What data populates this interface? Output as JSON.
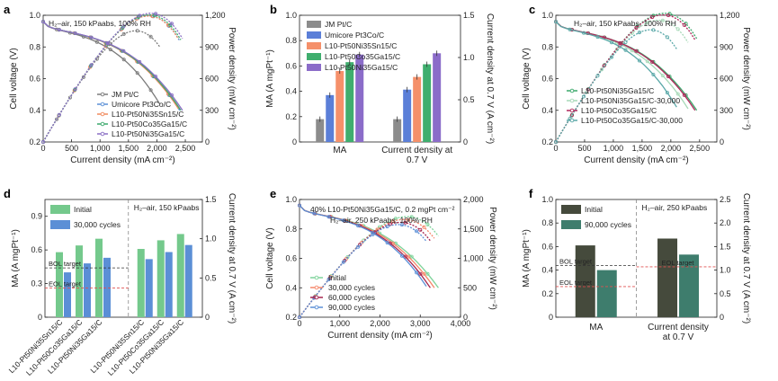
{
  "figure": {
    "panels": [
      "a",
      "b",
      "c",
      "d",
      "e",
      "f"
    ]
  },
  "chart_data": [
    {
      "id": "a",
      "type": "line",
      "annotation": "H₂–air, 150 kPaabs, 100% RH",
      "xlabel": "Current density (mA cm⁻²)",
      "ylabel": "Cell voltage (V)",
      "y2label": "Power density (mW cm⁻²)",
      "xlim": [
        0,
        2800
      ],
      "ylim": [
        0.2,
        1.0
      ],
      "y2lim": [
        0,
        1200
      ],
      "xticks": [
        "0",
        "500",
        "1,000",
        "1,500",
        "2,000",
        "2,500"
      ],
      "yticks": [
        "0.2",
        "0.4",
        "0.6",
        "0.8",
        "1.0"
      ],
      "y2ticks": [
        "0",
        "300",
        "600",
        "900",
        "1,200"
      ],
      "series": [
        {
          "name": "JM Pt/C",
          "color": "#7a7a7a",
          "imax": 2050,
          "v_end": 0.44
        },
        {
          "name": "Umicore Pt3Co/C",
          "color": "#5a8fd6",
          "imax": 2400,
          "v_end": 0.4
        },
        {
          "name": "L10-Pt50Ni35Sn15/C",
          "color": "#f08a5d",
          "imax": 2380,
          "v_end": 0.41
        },
        {
          "name": "L10-Pt50Co35Ga15/C",
          "color": "#3aa86b",
          "imax": 2420,
          "v_end": 0.4
        },
        {
          "name": "L10-Pt50Ni35Ga15/C",
          "color": "#8a6fc4",
          "imax": 2450,
          "v_end": 0.4
        }
      ]
    },
    {
      "id": "b",
      "type": "bar",
      "categories": [
        "MA",
        "Current density at 0.7 V"
      ],
      "category_lines": [
        [
          "MA"
        ],
        [
          "Current density at",
          "0.7 V"
        ]
      ],
      "ylabel": "MA (A mgPt⁻¹)",
      "y2label": "Current density at 0.7 V (A cm⁻²)",
      "ylim": [
        0,
        1.0
      ],
      "y2lim": [
        0,
        1.5
      ],
      "yticks": [
        "0",
        "0.2",
        "0.4",
        "0.6",
        "0.8",
        "1.0"
      ],
      "y2ticks": [
        "0",
        "0.5",
        "1.0",
        "1.5"
      ],
      "series": [
        {
          "name": "JM Pt/C",
          "color": "#8c8c8c",
          "values": [
            0.18,
            0.27
          ]
        },
        {
          "name": "Umicore Pt3Co/C",
          "color": "#5b7fd8",
          "values": [
            0.37,
            0.62
          ]
        },
        {
          "name": "L10-Pt50Ni35Sn15/C",
          "color": "#f5906a",
          "values": [
            0.56,
            0.77
          ]
        },
        {
          "name": "L10-Pt50Co35Ga15/C",
          "color": "#3fae6e",
          "values": [
            0.63,
            0.92
          ]
        },
        {
          "name": "L10-Pt50Ni35Ga15/C",
          "color": "#8b6cc9",
          "values": [
            0.69,
            1.05
          ]
        }
      ]
    },
    {
      "id": "c",
      "type": "line",
      "annotation": "H₂–air, 150 kPaabs, 100% RH",
      "xlabel": "Current density (mA cm⁻²)",
      "ylabel": "Cell voltage (V)",
      "y2label": "Power density (mW cm⁻²)",
      "xlim": [
        0,
        2800
      ],
      "ylim": [
        0.2,
        1.0
      ],
      "y2lim": [
        0,
        1200
      ],
      "xticks": [
        "0",
        "500",
        "1,000",
        "1,500",
        "2,000",
        "2,500"
      ],
      "yticks": [
        "0.2",
        "0.4",
        "0.6",
        "0.8",
        "1.0"
      ],
      "y2ticks": [
        "0",
        "300",
        "600",
        "900",
        "1,200"
      ],
      "series": [
        {
          "name": "L10-Pt50Ni35Ga15/C",
          "color": "#3aa86b",
          "imax": 2450,
          "v_end": 0.4
        },
        {
          "name": "L10-Pt50Ni35Ga15/C-30,000",
          "color": "#a7d9b8",
          "imax": 2300,
          "v_end": 0.41
        },
        {
          "name": "L10-Pt50Co35Ga15/C",
          "color": "#b0275a",
          "imax": 2420,
          "v_end": 0.4
        },
        {
          "name": "L10-Pt50Co35Ga15/C-30,000",
          "color": "#5aa8a8",
          "imax": 2100,
          "v_end": 0.42
        }
      ]
    },
    {
      "id": "d",
      "type": "bar",
      "annotation": "H₂–air, 150 kPaabs",
      "ylabel": "MA (A mgPt⁻¹)",
      "y2label": "Current density at 0.7 V (A cm⁻²)",
      "ylim": [
        0,
        1.05
      ],
      "y2lim": [
        0,
        1.5
      ],
      "yticks": [
        "0",
        "0.3",
        "0.6",
        "0.9"
      ],
      "y2ticks": [
        "0",
        "0.5",
        "1.0",
        "1.5"
      ],
      "categories": [
        "L10-Pt50Ni35Sn15/C",
        "L10-Pt50Co35Ga15/C",
        "L10-Pt50Ni35Ga15/C",
        "L10-Pt50Ni35Sn15/C",
        "L10-Pt50Co35Ga15/C",
        "L10-Pt50Ni35Ga15/C"
      ],
      "series": [
        {
          "name": "Initial",
          "color": "#74c98c",
          "values": [
            0.58,
            0.64,
            0.7,
            0.87,
            0.98,
            1.06
          ]
        },
        {
          "name": "30,000 cycles",
          "color": "#5b8fd6",
          "values": [
            0.4,
            0.48,
            0.53,
            0.74,
            0.83,
            0.92
          ]
        }
      ],
      "targets": [
        {
          "label": "BOL target",
          "value": 0.44
        },
        {
          "label": "EOL target",
          "value": 0.26
        }
      ]
    },
    {
      "id": "e",
      "type": "line",
      "annotation_1": "40% L10-Pt50Ni35Ga15/C, 0.2 mgPt cm⁻²",
      "annotation_2": "H₂–air, 250 kPaabs, 100% RH",
      "xlabel": "Current density (mA cm⁻²)",
      "ylabel": "Cell voltage (V)",
      "y2label": "Power density (mW cm⁻²)",
      "xlim": [
        0,
        4000
      ],
      "ylim": [
        0.2,
        1.0
      ],
      "y2lim": [
        0,
        2000
      ],
      "xticks": [
        "0",
        "1,000",
        "2,000",
        "3,000",
        "4,000"
      ],
      "yticks": [
        "0.2",
        "0.4",
        "0.6",
        "0.8",
        "1.0"
      ],
      "y2ticks": [
        "0",
        "500",
        "1,000",
        "1,500",
        "2,000"
      ],
      "series": [
        {
          "name": "Initial",
          "color": "#7ed39a",
          "imax": 3450,
          "v_end": 0.4
        },
        {
          "name": "30,000 cycles",
          "color": "#f5876a",
          "imax": 3350,
          "v_end": 0.4
        },
        {
          "name": "60,000 cycles",
          "color": "#a6264f",
          "imax": 3250,
          "v_end": 0.4
        },
        {
          "name": "90,000 cycles",
          "color": "#5b8fd6",
          "imax": 3150,
          "v_end": 0.41
        }
      ]
    },
    {
      "id": "f",
      "type": "bar",
      "annotation": "H₂–air, 250 kPaabs",
      "categories": [
        "MA",
        "Current density at 0.7 V"
      ],
      "category_lines": [
        [
          "MA"
        ],
        [
          "Current density",
          "at 0.7 V"
        ]
      ],
      "ylabel": "MA (A mgPt⁻¹)",
      "y2label": "Current density at 0.7 V (A cm⁻²)",
      "ylim": [
        0,
        1.0
      ],
      "y2lim": [
        0,
        2.5
      ],
      "yticks": [
        "0",
        "0.2",
        "0.4",
        "0.6",
        "0.8",
        "1.0"
      ],
      "y2ticks": [
        "0",
        "0.5",
        "1.0",
        "1.5",
        "2.0",
        "2.5"
      ],
      "series": [
        {
          "name": "Initial",
          "color": "#454a3c",
          "values": [
            0.61,
            1.67
          ]
        },
        {
          "name": "90,000 cycles",
          "color": "#3e7d6d",
          "values": [
            0.4,
            1.33
          ]
        }
      ],
      "targets_left": [
        {
          "label": "BOL target",
          "value": 0.44
        },
        {
          "label": "EOL target",
          "value": 0.26
        }
      ],
      "targets_right": [
        {
          "label": "EOL target",
          "value": 1.07
        }
      ]
    }
  ]
}
